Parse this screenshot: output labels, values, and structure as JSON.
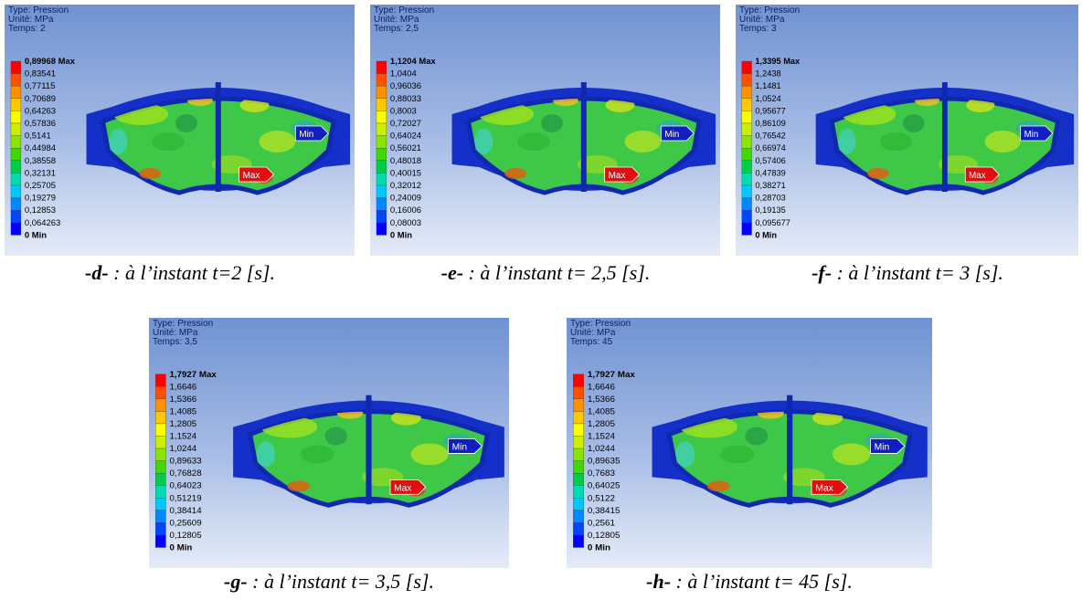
{
  "panels": [
    {
      "header": [
        "Type: Pression",
        "Unité: MPa",
        "Temps: 2"
      ],
      "legend": [
        "0,89968 Max",
        "0,83541",
        "0,77115",
        "0,70689",
        "0,64263",
        "0,57836",
        "0,5141",
        "0,44984",
        "0,38558",
        "0,32131",
        "0,25705",
        "0,19279",
        "0,12853",
        "0,064263",
        "0 Min"
      ],
      "max_tag": "Max",
      "min_tag": "Min",
      "caption": {
        "label": "-d-",
        "text": " : à l’instant t=2 [s]."
      }
    },
    {
      "header": [
        "Type: Pression",
        "Unité: MPa",
        "Temps: 2,5"
      ],
      "legend": [
        "1,1204 Max",
        "1,0404",
        "0,96036",
        "0,88033",
        "0,8003",
        "0,72027",
        "0,64024",
        "0,56021",
        "0,48018",
        "0,40015",
        "0,32012",
        "0,24009",
        "0,16006",
        "0,08003",
        "0 Min"
      ],
      "max_tag": "Max",
      "min_tag": "Min",
      "caption": {
        "label": "-e-",
        "text": " : à l’instant t= 2,5 [s]."
      }
    },
    {
      "header": [
        "Type: Pression",
        "Unité: MPa",
        "Temps: 3"
      ],
      "legend": [
        "1,3395 Max",
        "1,2438",
        "1,1481",
        "1,0524",
        "0,95677",
        "0,86109",
        "0,76542",
        "0,66974",
        "0,57406",
        "0,47839",
        "0,38271",
        "0,28703",
        "0,19135",
        "0,095677",
        "0 Min"
      ],
      "max_tag": "Max",
      "min_tag": "Min",
      "caption": {
        "label": "-f-",
        "text": " : à l’instant t= 3 [s]."
      }
    },
    {
      "header": [
        "Type: Pression",
        "Unité: MPa",
        "Temps: 3,5"
      ],
      "legend": [
        "1,7927 Max",
        "1,6646",
        "1,5366",
        "1,4085",
        "1,2805",
        "1,1524",
        "1,0244",
        "0,89633",
        "0,76828",
        "0,64023",
        "0,51219",
        "0,38414",
        "0,25609",
        "0,12805",
        "0 Min"
      ],
      "max_tag": "Max",
      "min_tag": "Min",
      "caption": {
        "label": "-g-",
        "text": " : à l’instant t= 3,5 [s]."
      }
    },
    {
      "header": [
        "Type: Pression",
        "Unité: MPa",
        "Temps: 45"
      ],
      "legend": [
        "1,7927 Max",
        "1,6646",
        "1,5366",
        "1,4085",
        "1,2805",
        "1,1524",
        "1,0244",
        "0,89635",
        "0,7683",
        "0,64025",
        "0,5122",
        "0,38415",
        "0,2561",
        "0,12805",
        "0 Min"
      ],
      "max_tag": "Max",
      "min_tag": "Min",
      "caption": {
        "label": "-h-",
        "text": " : à l’instant t= 45 [s]."
      }
    }
  ]
}
